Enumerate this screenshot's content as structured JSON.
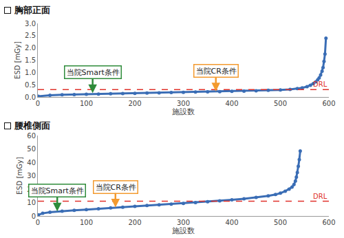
{
  "chart_data": [
    {
      "type": "scatter",
      "title": "胸部正面",
      "x_label": "施設数",
      "y_label": "ESD [mGy]",
      "x": [
        1,
        25,
        50,
        75,
        100,
        125,
        150,
        175,
        200,
        225,
        250,
        275,
        300,
        325,
        350,
        375,
        400,
        425,
        450,
        475,
        500,
        520,
        535,
        545,
        555,
        562,
        568,
        573,
        577,
        580,
        583,
        586,
        588,
        590,
        592,
        594
      ],
      "values": [
        0.03,
        0.07,
        0.09,
        0.1,
        0.11,
        0.12,
        0.13,
        0.14,
        0.15,
        0.16,
        0.17,
        0.18,
        0.19,
        0.2,
        0.21,
        0.22,
        0.23,
        0.24,
        0.25,
        0.27,
        0.29,
        0.31,
        0.34,
        0.37,
        0.42,
        0.48,
        0.55,
        0.62,
        0.7,
        0.78,
        0.9,
        1.05,
        1.2,
        1.45,
        1.75,
        2.4
      ],
      "color": "#3a6db5",
      "marker": "circle",
      "grid": false,
      "xlim": [
        0,
        600
      ],
      "xticks": [
        0,
        100,
        200,
        300,
        400,
        500,
        600
      ],
      "ylim": [
        0,
        3.0
      ],
      "yticks": [
        {
          "value": 0,
          "label": "0.0"
        },
        {
          "value": 0.5,
          "label": "0.5"
        },
        {
          "value": 1.0,
          "label": "1.0"
        },
        {
          "value": 1.5,
          "label": "1.5"
        },
        {
          "value": 2.0,
          "label": "2.0"
        },
        {
          "value": 2.5,
          "label": "2.5"
        },
        {
          "value": 3.0,
          "label": "3.0"
        }
      ],
      "reference_lines": [
        {
          "y": 0.3,
          "label": "DRL",
          "color": "#e0322b",
          "line_style": "dash"
        }
      ],
      "annotations": [
        {
          "text": "当院Smart条件",
          "x": 113,
          "y": 0.16,
          "color": "#2e8b3a"
        },
        {
          "text": "当院CR条件",
          "x": 367,
          "y": 0.23,
          "color": "#f39a2e"
        }
      ]
    },
    {
      "type": "scatter",
      "title": "腰椎側面",
      "x_label": "施設数",
      "y_label": "ESD [mGy]",
      "x": [
        1,
        10,
        25,
        50,
        75,
        100,
        125,
        150,
        175,
        200,
        225,
        250,
        275,
        300,
        325,
        350,
        375,
        400,
        425,
        450,
        475,
        490,
        500,
        510,
        518,
        524,
        528,
        531,
        533,
        535,
        537,
        539,
        541
      ],
      "values": [
        0.8,
        2.0,
        2.8,
        3.6,
        4.2,
        4.8,
        5.4,
        6.0,
        6.6,
        7.2,
        7.8,
        8.3,
        8.8,
        9.4,
        10.0,
        10.6,
        11.3,
        12.0,
        12.8,
        13.8,
        15.0,
        16.0,
        17.0,
        18.5,
        20.0,
        21.5,
        23.5,
        26.0,
        29.0,
        32.5,
        37.0,
        42.0,
        48.5
      ],
      "color": "#3a6db5",
      "marker": "circle",
      "grid": false,
      "xlim": [
        0,
        600
      ],
      "xticks": [
        0,
        100,
        200,
        300,
        400,
        500,
        600
      ],
      "ylim": [
        0,
        60
      ],
      "yticks": [
        0,
        10,
        20,
        30,
        40,
        50,
        60
      ],
      "reference_lines": [
        {
          "y": 11,
          "label": "DRL",
          "color": "#e0322b",
          "line_style": "dash"
        }
      ],
      "annotations": [
        {
          "text": "当院Smart条件",
          "x": 40,
          "y": 3.4,
          "color": "#2e8b3a"
        },
        {
          "text": "当院CR条件",
          "x": 160,
          "y": 6.4,
          "color": "#f39a2e"
        }
      ]
    }
  ]
}
